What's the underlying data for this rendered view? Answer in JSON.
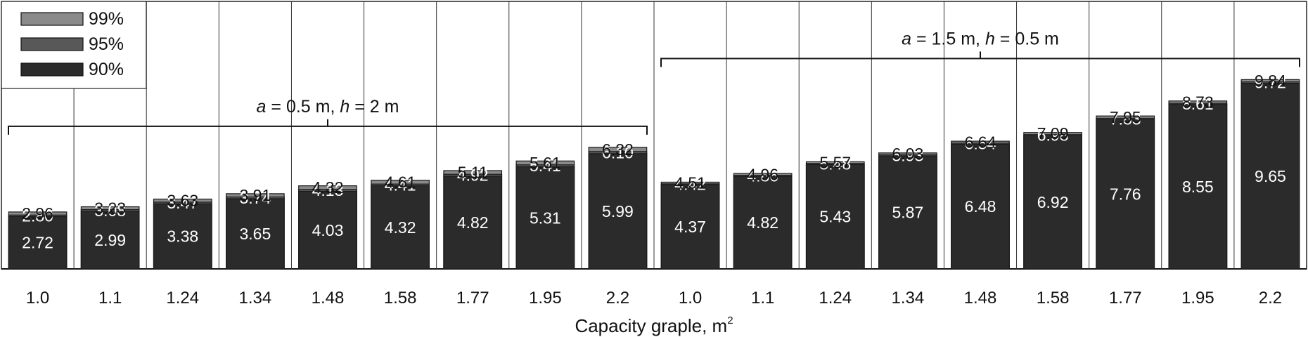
{
  "chart_data": {
    "type": "bar",
    "stacked": true,
    "xlabel": "Capacity graple, m",
    "xlabel_sup": "2",
    "categories": [
      "1.0",
      "1.1",
      "1.24",
      "1.34",
      "1.48",
      "1.58",
      "1.77",
      "1.95",
      "2.2",
      "1.0",
      "1.1",
      "1.24",
      "1.34",
      "1.48",
      "1.58",
      "1.77",
      "1.95",
      "2.2"
    ],
    "series": [
      {
        "name": "90%",
        "color": "#2b2b2b",
        "values": [
          2.72,
          2.99,
          3.38,
          3.65,
          4.03,
          4.32,
          4.82,
          5.31,
          5.99,
          4.37,
          4.82,
          5.43,
          5.87,
          6.48,
          6.92,
          7.76,
          8.55,
          9.65
        ]
      },
      {
        "name": "95%",
        "color": "#585858",
        "values": [
          2.8,
          3.08,
          3.47,
          3.74,
          4.13,
          4.41,
          4.92,
          5.41,
          6.1,
          4.42,
          4.86,
          5.48,
          5.93,
          6.54,
          6.98,
          7.83,
          8.61,
          9.72
        ]
      },
      {
        "name": "99%",
        "color": "#8a8a8a",
        "values": [
          2.96,
          3.23,
          3.63,
          3.91,
          4.32,
          4.61,
          5.11,
          5.61,
          6.32,
          4.51,
          4.96,
          5.57,
          6.03,
          6.64,
          7.09,
          7.95,
          8.73,
          9.84
        ]
      }
    ],
    "value_labels": [
      [
        "2.72",
        "2.99",
        "3.38",
        "3.65",
        "4.03",
        "4.32",
        "4.82",
        "5.31",
        "5.99",
        "4.37",
        "4.82",
        "5.43",
        "5.87",
        "6.48",
        "6.92",
        "7.76",
        "8.55",
        "9.65"
      ],
      [
        "2.80",
        "3.08",
        "3.47",
        "3.74",
        "4.13",
        "4.41",
        "4.92",
        "5.41",
        "6.10",
        "4.42",
        "4.86",
        "5.48",
        "5.93",
        "6.54",
        "6.98",
        "7.83",
        "8.61",
        "9.72"
      ],
      [
        "2.96",
        "3.23",
        "3.63",
        "3.91",
        "4.32",
        "4.61",
        "5.11",
        "5.61",
        "6.32",
        "4.51",
        "4.96",
        "5.57",
        "6.03",
        "6.64",
        "7.09",
        "7.95",
        "8.73",
        "9.84"
      ]
    ],
    "groups": [
      {
        "label_parts": [
          "a",
          " = 0.5 m,  ",
          "h",
          " = 2 m"
        ],
        "start": 0,
        "end": 8
      },
      {
        "label_parts": [
          "a",
          " = 1.5 m,  ",
          "h",
          " = 0.5 m"
        ],
        "start": 9,
        "end": 17
      }
    ],
    "legend": {
      "placement": "top-left",
      "order": [
        "99%",
        "95%",
        "90%"
      ]
    },
    "grid": {
      "vertical": true,
      "horizontal": false
    }
  }
}
